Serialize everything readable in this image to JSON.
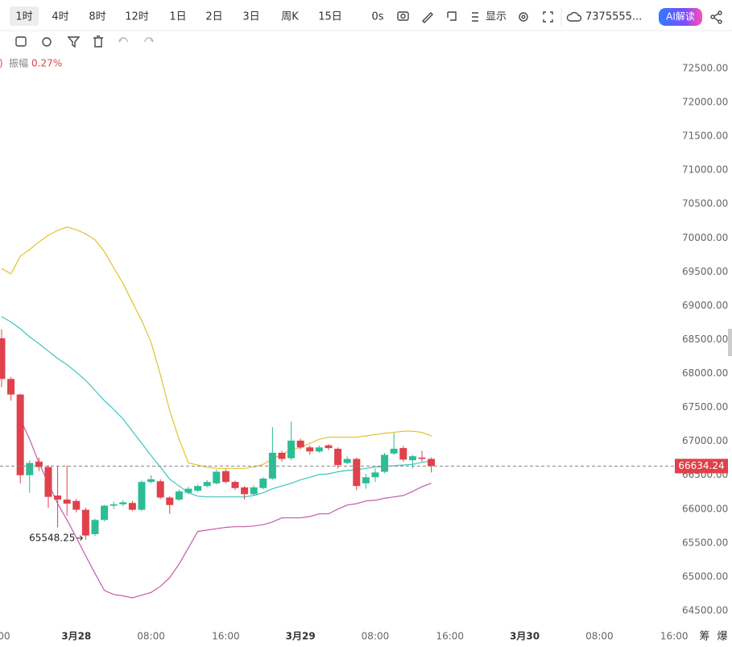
{
  "toolbar": {
    "intervals": [
      "1时",
      "4时",
      "8时",
      "12时",
      "1日",
      "2日",
      "3日",
      "周K",
      "15日"
    ],
    "active_interval": 0,
    "timer": "0s",
    "display": "显示",
    "account": "7375555...",
    "ai": "AI解读"
  },
  "legend": {
    "prefix": ")",
    "amplitude_label": "振幅",
    "amplitude_value": "0.27%"
  },
  "footer": {
    "left": "筹",
    "right": "爆"
  },
  "chart_data": {
    "type": "candlestick",
    "up_color": "#2dbd96",
    "down_color": "#e0414b",
    "candles": {
      "open": [
        68520,
        67920,
        67690,
        66500,
        66700,
        66620,
        66200,
        66140,
        66120,
        65990,
        65630,
        65840,
        66050,
        66070,
        66090,
        65990,
        66400,
        66410,
        66170,
        66140,
        66240,
        66270,
        66340,
        66380,
        66560,
        66400,
        66320,
        66220,
        66310,
        66450,
        66830,
        66750,
        67010,
        66910,
        66850,
        66940,
        66890,
        66680,
        66740,
        66380,
        66470,
        66550,
        66820,
        66900,
        66720,
        66760,
        66740
      ],
      "high": [
        68650,
        67950,
        67700,
        66720,
        66760,
        66650,
        66640,
        66640,
        66150,
        66020,
        65860,
        66060,
        66110,
        66130,
        66120,
        66420,
        66500,
        66440,
        66190,
        66290,
        66330,
        66360,
        66430,
        66580,
        66590,
        66420,
        66340,
        66350,
        66470,
        67210,
        66860,
        67290,
        67040,
        66940,
        66940,
        66960,
        66910,
        66780,
        66760,
        66520,
        66600,
        66830,
        67120,
        66930,
        66800,
        66860,
        66760
      ],
      "low": [
        67800,
        67600,
        66380,
        66240,
        66560,
        66020,
        65730,
        65900,
        65950,
        65548.25,
        65600,
        65820,
        66000,
        66040,
        65970,
        65970,
        66380,
        66150,
        65930,
        66120,
        66220,
        66250,
        66320,
        66360,
        66380,
        66280,
        66140,
        66200,
        66290,
        66430,
        66700,
        66720,
        66880,
        66800,
        66830,
        66870,
        66600,
        66660,
        66280,
        66300,
        66400,
        66530,
        66800,
        66700,
        66600,
        66700,
        66540
      ],
      "close": [
        67920,
        67690,
        66500,
        66680,
        66620,
        66180,
        66140,
        66080,
        65990,
        65610,
        65840,
        66050,
        66070,
        66100,
        65990,
        66400,
        66440,
        66170,
        66060,
        66260,
        66300,
        66340,
        66400,
        66550,
        66400,
        66310,
        66220,
        66320,
        66450,
        66830,
        66740,
        67010,
        66910,
        66850,
        66910,
        66900,
        66650,
        66740,
        66340,
        66470,
        66540,
        66800,
        66890,
        66730,
        66780,
        66740,
        66634.24
      ]
    },
    "series": [
      {
        "color": "#e3c22c",
        "values": [
          69550,
          69470,
          69730,
          69830,
          69940,
          70040,
          70110,
          70160,
          70120,
          70060,
          69970,
          69800,
          69560,
          69330,
          69050,
          68780,
          68460,
          67980,
          67450,
          67030,
          66680,
          66650,
          66620,
          66600,
          66600,
          66600,
          66600,
          66620,
          66660,
          66740,
          66810,
          66870,
          66910,
          66970,
          67030,
          67060,
          67060,
          67060,
          67060,
          67080,
          67100,
          67120,
          67130,
          67150,
          67150,
          67130,
          67080
        ]
      },
      {
        "color": "#3cc6c0",
        "values": [
          68840,
          68760,
          68660,
          68540,
          68440,
          68330,
          68220,
          68130,
          68020,
          67900,
          67750,
          67600,
          67470,
          67330,
          67150,
          66970,
          66790,
          66620,
          66440,
          66340,
          66240,
          66190,
          66180,
          66180,
          66180,
          66180,
          66180,
          66200,
          66240,
          66300,
          66340,
          66380,
          66430,
          66470,
          66510,
          66520,
          66550,
          66570,
          66580,
          66600,
          66620,
          66630,
          66640,
          66650,
          66660,
          66690,
          66710
        ]
      },
      {
        "color": "#c65aa9",
        "values": [
          null,
          null,
          67330,
          67030,
          66680,
          66380,
          66080,
          65840,
          65580,
          65310,
          65050,
          64800,
          64740,
          64720,
          64690,
          64730,
          64770,
          64860,
          64990,
          65190,
          65430,
          65670,
          65690,
          65710,
          65730,
          65740,
          65740,
          65750,
          65770,
          65810,
          65870,
          65870,
          65870,
          65890,
          65930,
          65930,
          66000,
          66060,
          66080,
          66120,
          66130,
          66160,
          66180,
          66200,
          66260,
          66330,
          66380
        ]
      }
    ],
    "xlim": [
      -0.17,
      72.07
    ],
    "xticks": [
      {
        "value": 0,
        "label": "00"
      },
      {
        "value": 8,
        "label": "3月28"
      },
      {
        "value": 16,
        "label": "08:00"
      },
      {
        "value": 24,
        "label": "16:00"
      },
      {
        "value": 32,
        "label": "3月29"
      },
      {
        "value": 40,
        "label": "08:00"
      },
      {
        "value": 48,
        "label": "16:00"
      },
      {
        "value": 56,
        "label": "3月30"
      },
      {
        "value": 64,
        "label": "08:00"
      },
      {
        "value": 72,
        "label": "16:00"
      }
    ],
    "ylim": [
      64298,
      72678
    ],
    "yticks": [
      {
        "value": 72500,
        "label": "72500.00"
      },
      {
        "value": 72000,
        "label": "72000.00"
      },
      {
        "value": 71500,
        "label": "71500.00"
      },
      {
        "value": 71000,
        "label": "71000.00"
      },
      {
        "value": 70500,
        "label": "70500.00"
      },
      {
        "value": 70000,
        "label": "70000.00"
      },
      {
        "value": 69500,
        "label": "69500.00"
      },
      {
        "value": 69000,
        "label": "69000.00"
      },
      {
        "value": 68500,
        "label": "68500.00"
      },
      {
        "value": 68000,
        "label": "68000.00"
      },
      {
        "value": 67500,
        "label": "67500.00"
      },
      {
        "value": 67000,
        "label": "67000.00"
      },
      {
        "value": 66500,
        "label": "66500.00"
      },
      {
        "value": 66000,
        "label": "66000.00"
      },
      {
        "value": 65500,
        "label": "65500.00"
      },
      {
        "value": 65000,
        "label": "65000.00"
      },
      {
        "value": 64500,
        "label": "64500.00"
      }
    ],
    "grid": false
  }
}
